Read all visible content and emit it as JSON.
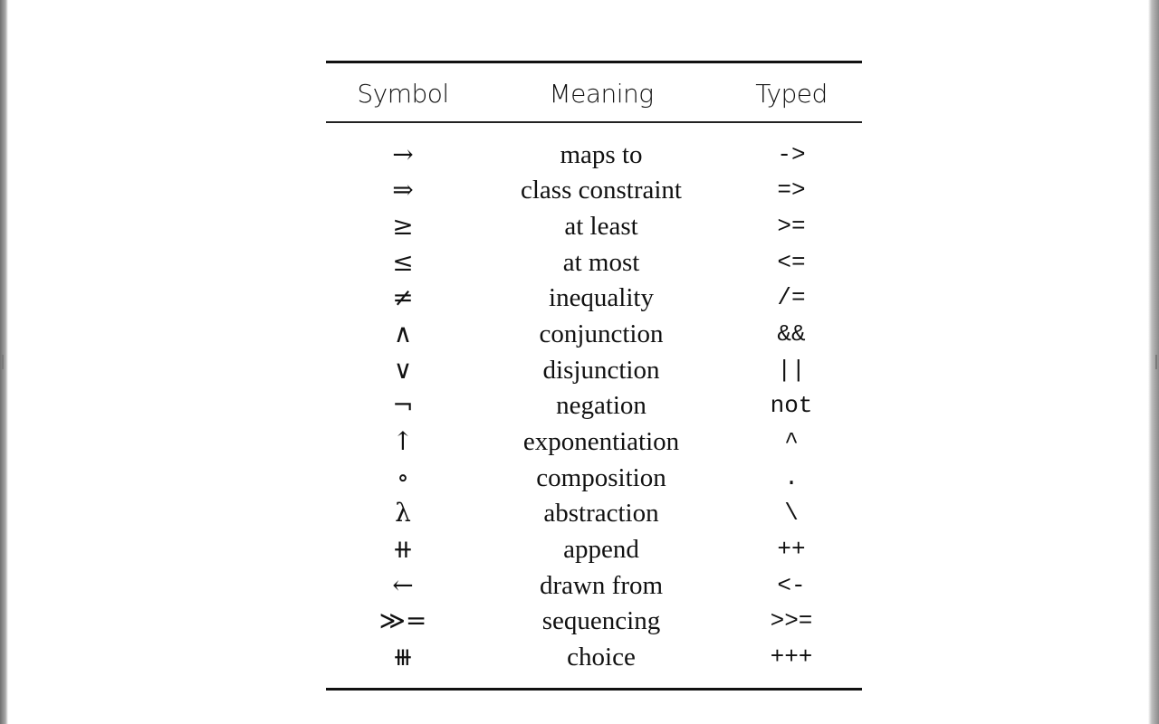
{
  "table": {
    "headers": {
      "symbol": "Symbol",
      "meaning": "Meaning",
      "typed": "Typed"
    },
    "rows": [
      {
        "symbol": "→",
        "meaning": "maps to",
        "typed": "->"
      },
      {
        "symbol": "⇒",
        "meaning": "class constraint",
        "typed": "=>"
      },
      {
        "symbol": "≥",
        "meaning": "at least",
        "typed": ">="
      },
      {
        "symbol": "≤",
        "meaning": "at most",
        "typed": "<="
      },
      {
        "symbol": "≠",
        "meaning": "inequality",
        "typed": "/="
      },
      {
        "symbol": "∧",
        "meaning": "conjunction",
        "typed": "&&"
      },
      {
        "symbol": "∨",
        "meaning": "disjunction",
        "typed": "||"
      },
      {
        "symbol": "¬",
        "meaning": "negation",
        "typed": "not"
      },
      {
        "symbol": "↑",
        "meaning": "exponentiation",
        "typed": "^"
      },
      {
        "symbol": "∘",
        "meaning": "composition",
        "typed": "."
      },
      {
        "symbol": "λ",
        "meaning": "abstraction",
        "typed": "\\"
      },
      {
        "symbol": "⧺",
        "meaning": "append",
        "typed": "++"
      },
      {
        "symbol": "←",
        "meaning": "drawn from",
        "typed": "<-"
      },
      {
        "symbol": "≫=",
        "meaning": "sequencing",
        "typed": ">>="
      },
      {
        "symbol": "⧻",
        "meaning": "choice",
        "typed": "+++"
      }
    ]
  }
}
